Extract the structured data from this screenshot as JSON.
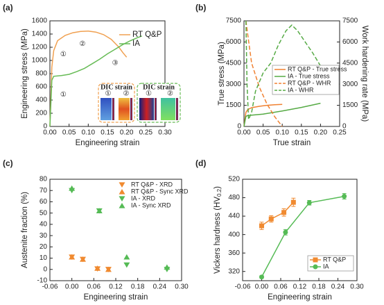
{
  "chart_data": [
    {
      "type": "line",
      "label": "(a)",
      "xlabel": "Engineering strain",
      "ylabel": "Engineering stress (MPa)",
      "xlim": [
        0,
        0.3
      ],
      "xticks": [
        {
          "value": 0,
          "label": "0.00"
        },
        0.05,
        {
          "value": 0.1,
          "label": "0.10"
        },
        0.15,
        {
          "value": 0.2,
          "label": "0.20"
        },
        0.25,
        {
          "value": 0.3,
          "label": "0.30"
        }
      ],
      "ylim": [
        0,
        1600
      ],
      "yticks": [
        0,
        200,
        400,
        600,
        800,
        1000,
        1200,
        1400,
        1600
      ],
      "legend": "upper right",
      "series": [
        {
          "name": "RT Q&P",
          "color": "#f0a050",
          "x": [
            0,
            0.005,
            0.01,
            0.02,
            0.04,
            0.06,
            0.08,
            0.1,
            0.12,
            0.14,
            0.16,
            0.18,
            0.19,
            0.2
          ],
          "values": [
            0,
            900,
            1150,
            1300,
            1380,
            1420,
            1440,
            1445,
            1430,
            1390,
            1320,
            1200,
            1120,
            1050
          ]
        },
        {
          "name": "IA",
          "color": "#66bb55",
          "x": [
            0,
            0.005,
            0.01,
            0.03,
            0.05,
            0.07,
            0.09,
            0.11,
            0.13,
            0.15,
            0.17,
            0.19,
            0.21,
            0.23,
            0.24
          ],
          "values": [
            0,
            700,
            760,
            770,
            790,
            830,
            880,
            950,
            1020,
            1100,
            1170,
            1240,
            1300,
            1350,
            1370
          ]
        }
      ],
      "annotations": [
        {
          "text": "①",
          "x": 0.035,
          "y": 1090,
          "color": "#f0a050"
        },
        {
          "text": "②",
          "x": 0.085,
          "y": 1250,
          "color": "#f0a050"
        },
        {
          "text": "①",
          "x": 0.035,
          "y": 480,
          "color": "#66bb55"
        },
        {
          "text": "③",
          "x": 0.17,
          "y": 960,
          "color": "#66bb55"
        }
      ],
      "insets": [
        {
          "title": "DIC strain",
          "labels": [
            "①",
            "②"
          ],
          "color": "#f0a050"
        },
        {
          "title": "DIC strain",
          "labels": [
            "①",
            "②"
          ],
          "color": "#66bb55"
        }
      ]
    },
    {
      "type": "line",
      "label": "(b)",
      "xlabel": "True strain",
      "ylabel": "True stress (MPa)",
      "y2label": "Work hardening rate (MPa)",
      "xlim": [
        0,
        0.25
      ],
      "xticks": [
        {
          "value": 0,
          "label": "0.00"
        },
        0.05,
        {
          "value": 0.1,
          "label": "0.10"
        },
        0.15,
        {
          "value": 0.2,
          "label": "0.20"
        },
        0.25
      ],
      "ylim": [
        0,
        7500
      ],
      "yticks": [
        0,
        1500,
        3000,
        4500,
        6000,
        7500
      ],
      "y2lim": [
        0,
        7500
      ],
      "y2ticks": [
        0,
        1500,
        3000,
        4500,
        6000,
        7500
      ],
      "legend": "center right",
      "series": [
        {
          "name": "RT Q&P - True stress",
          "color": "#f08030",
          "x": [
            0,
            0.005,
            0.01,
            0.02,
            0.04,
            0.06,
            0.08,
            0.1
          ],
          "values": [
            0,
            1000,
            1200,
            1330,
            1430,
            1500,
            1540,
            1570
          ]
        },
        {
          "name": "IA - True stress",
          "color": "#55aa44",
          "x": [
            0,
            0.005,
            0.01,
            0.05,
            0.1,
            0.15,
            0.2
          ],
          "values": [
            0,
            720,
            780,
            880,
            1100,
            1350,
            1650
          ]
        },
        {
          "name": "RT Q&P - WHR",
          "color": "#f08030",
          "dashed": true,
          "axis": "y2",
          "x": [
            0.005,
            0.01,
            0.02,
            0.04,
            0.06,
            0.08,
            0.1
          ],
          "values": [
            7500,
            6500,
            4500,
            2800,
            1600,
            700,
            0
          ]
        },
        {
          "name": "IA - WHR",
          "color": "#55aa44",
          "dashed": true,
          "axis": "y2",
          "x": [
            0.005,
            0.008,
            0.012,
            0.02,
            0.03,
            0.05,
            0.07,
            0.09,
            0.11,
            0.125,
            0.14,
            0.16,
            0.18,
            0.2
          ],
          "values": [
            7500,
            3000,
            500,
            1000,
            2500,
            3800,
            4500,
            5800,
            6800,
            7200,
            6800,
            6000,
            5200,
            4300
          ]
        }
      ]
    },
    {
      "type": "scatter",
      "label": "(c)",
      "xlabel": "Engineering strain",
      "ylabel": "Austenite fraction (%)",
      "xlim": [
        -0.06,
        0.3
      ],
      "xticks": [
        -0.06,
        {
          "value": 0,
          "label": "0.00"
        },
        0.06,
        0.12,
        0.18,
        0.24,
        {
          "value": 0.3,
          "label": "0.30"
        }
      ],
      "ylim": [
        -10,
        80
      ],
      "yticks": [
        -10,
        0,
        10,
        20,
        30,
        40,
        50,
        60,
        70,
        80
      ],
      "legend": "upper right",
      "series": [
        {
          "name": "RT Q&P - XRD",
          "color": "#f08a30",
          "marker": "v",
          "x": [
            0,
            0.03,
            0.07,
            0.1
          ],
          "values": [
            11,
            9,
            0.5,
            0
          ]
        },
        {
          "name": "RT Q&P - Sync XRD",
          "color": "#f08a30",
          "marker": "^",
          "x": [
            0,
            0.03,
            0.07,
            0.1
          ],
          "values": [
            11,
            9,
            1,
            0
          ]
        },
        {
          "name": "IA - XRD",
          "color": "#55bb55",
          "marker": "v",
          "x": [
            0,
            0.075,
            0.15,
            0.26
          ],
          "values": [
            70,
            52,
            4,
            0
          ]
        },
        {
          "name": "IA - Sync XRD",
          "color": "#55bb55",
          "marker": "^",
          "x": [
            0,
            0.075,
            0.15,
            0.26
          ],
          "values": [
            72,
            52,
            11,
            2
          ]
        }
      ]
    },
    {
      "type": "errorline",
      "label": "(d)",
      "xlabel": "Engineering strain",
      "ylabel": "Vickers hardness (HV",
      "ylabel_sub": "0.2",
      "ylabel_end": ")",
      "xlim": [
        -0.06,
        0.3
      ],
      "xticks": [
        -0.06,
        {
          "value": 0,
          "label": "0.00"
        },
        0.06,
        0.12,
        0.18,
        0.24,
        {
          "value": 0.3,
          "label": "0.30"
        }
      ],
      "ylim": [
        300,
        520
      ],
      "yticks": [
        320,
        360,
        400,
        440,
        480,
        520
      ],
      "legend": "lower right",
      "series": [
        {
          "name": "RT Q&P",
          "color": "#f08a30",
          "marker": "s",
          "x": [
            0,
            0.03,
            0.07,
            0.1
          ],
          "values": [
            419,
            434,
            448,
            470
          ],
          "errors": [
            8,
            7,
            8,
            9
          ]
        },
        {
          "name": "IA",
          "color": "#55bb55",
          "marker": "o",
          "x": [
            0,
            0.075,
            0.15,
            0.26
          ],
          "values": [
            308,
            405,
            469,
            483
          ],
          "errors": [
            3,
            6,
            5,
            6
          ]
        }
      ]
    }
  ]
}
